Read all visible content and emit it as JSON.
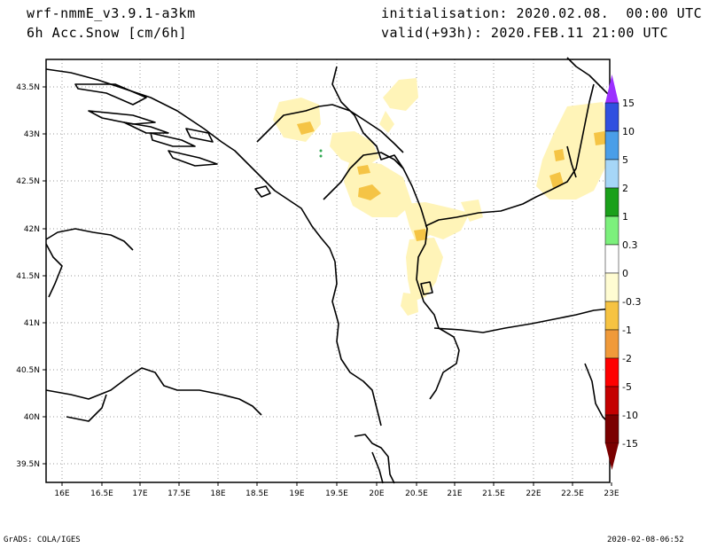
{
  "header": {
    "model": "wrf-nmmE_v3.9.1-a3km",
    "variable": "6h Acc.Snow [cm/6h]",
    "init": "initialisation: 2020.02.08.  00:00 UTC",
    "valid": "valid(+93h): 2020.FEB.11 21:00 UTC"
  },
  "footer": {
    "left": "GrADS: COLA/IGES",
    "right": "2020-02-08-06:52"
  },
  "map": {
    "lat_labels": [
      "43.5N",
      "43N",
      "42.5N",
      "42N",
      "41.5N",
      "41N",
      "40.5N",
      "40N",
      "39.5N"
    ],
    "lon_labels": [
      "16E",
      "16.5E",
      "17E",
      "17.5E",
      "18E",
      "18.5E",
      "19E",
      "19.5E",
      "20E",
      "20.5E",
      "21E",
      "21.5E",
      "22E",
      "22.5E",
      "23E"
    ],
    "colorbar": {
      "labels": [
        "15",
        "10",
        "5",
        "2",
        "1",
        "0.3",
        "0",
        "-0.3",
        "-1",
        "-2",
        "-5",
        "-10",
        "-15"
      ],
      "colors": [
        "#9b30ff",
        "#3050e0",
        "#4a9ee8",
        "#a6d6f7",
        "#1aa01a",
        "#7cf07c",
        "#ffffff",
        "#fffcd2",
        "#f6c342",
        "#f09a3a",
        "#ff0000",
        "#c40000",
        "#7a0000"
      ]
    },
    "snow_colors": {
      "light": "#fff4b8",
      "medium": "#f5c445"
    }
  }
}
